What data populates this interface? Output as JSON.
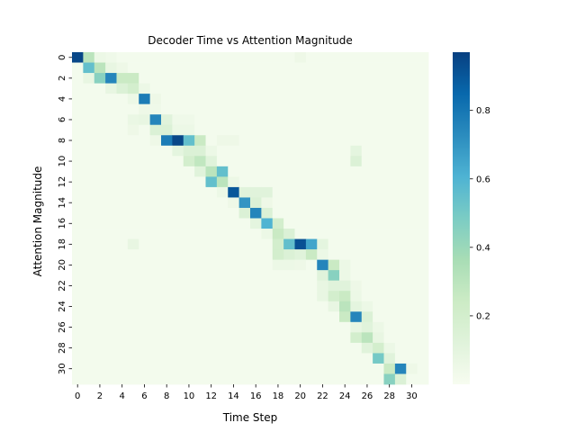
{
  "chart_data": {
    "type": "heatmap",
    "title": "Decoder Time vs Attention Magnitude",
    "xlabel": "Time Step",
    "ylabel": "Attention Magnitude",
    "n_rows": 32,
    "n_cols": 32,
    "x_tick_labels": [
      "0",
      "2",
      "4",
      "6",
      "8",
      "10",
      "12",
      "14",
      "16",
      "18",
      "20",
      "22",
      "24",
      "26",
      "28",
      "30"
    ],
    "y_tick_labels": [
      "0",
      "2",
      "4",
      "6",
      "8",
      "10",
      "12",
      "14",
      "16",
      "18",
      "20",
      "22",
      "24",
      "26",
      "28",
      "30"
    ],
    "colorbar": {
      "ticks": [
        0.2,
        0.4,
        0.6,
        0.8
      ],
      "vmin": 0.0,
      "vmax": 0.97,
      "colormap": "GnBu",
      "stops": [
        "#f7fcf0",
        "#e0f3db",
        "#ccebc5",
        "#a8ddb5",
        "#7bccc4",
        "#4eb3d3",
        "#2b8cbe",
        "#0868ac",
        "#084081"
      ]
    },
    "background_value": 0.02,
    "cells": [
      [
        0,
        0,
        0.95
      ],
      [
        0,
        1,
        0.3
      ],
      [
        0,
        2,
        0.06
      ],
      [
        0,
        3,
        0.04
      ],
      [
        0,
        20,
        0.05
      ],
      [
        1,
        1,
        0.55
      ],
      [
        1,
        2,
        0.3
      ],
      [
        1,
        3,
        0.08
      ],
      [
        1,
        4,
        0.05
      ],
      [
        2,
        1,
        0.08
      ],
      [
        2,
        2,
        0.45
      ],
      [
        2,
        3,
        0.75
      ],
      [
        2,
        4,
        0.25
      ],
      [
        2,
        5,
        0.25
      ],
      [
        3,
        3,
        0.08
      ],
      [
        3,
        4,
        0.15
      ],
      [
        3,
        5,
        0.2
      ],
      [
        3,
        6,
        0.06
      ],
      [
        4,
        5,
        0.06
      ],
      [
        4,
        6,
        0.78
      ],
      [
        4,
        7,
        0.05
      ],
      [
        5,
        6,
        0.05
      ],
      [
        5,
        7,
        0.04
      ],
      [
        6,
        5,
        0.07
      ],
      [
        6,
        6,
        0.08
      ],
      [
        6,
        7,
        0.75
      ],
      [
        6,
        8,
        0.12
      ],
      [
        6,
        9,
        0.04
      ],
      [
        6,
        10,
        0.04
      ],
      [
        7,
        5,
        0.05
      ],
      [
        7,
        7,
        0.15
      ],
      [
        7,
        8,
        0.15
      ],
      [
        7,
        9,
        0.06
      ],
      [
        7,
        10,
        0.06
      ],
      [
        8,
        7,
        0.05
      ],
      [
        8,
        8,
        0.78
      ],
      [
        8,
        9,
        0.95
      ],
      [
        8,
        10,
        0.55
      ],
      [
        8,
        11,
        0.25
      ],
      [
        8,
        13,
        0.05
      ],
      [
        8,
        14,
        0.05
      ],
      [
        9,
        9,
        0.1
      ],
      [
        9,
        10,
        0.15
      ],
      [
        9,
        11,
        0.15
      ],
      [
        9,
        12,
        0.06
      ],
      [
        9,
        25,
        0.1
      ],
      [
        10,
        10,
        0.2
      ],
      [
        10,
        11,
        0.28
      ],
      [
        10,
        12,
        0.12
      ],
      [
        10,
        25,
        0.15
      ],
      [
        11,
        11,
        0.12
      ],
      [
        11,
        12,
        0.3
      ],
      [
        11,
        13,
        0.55
      ],
      [
        12,
        12,
        0.55
      ],
      [
        12,
        13,
        0.3
      ],
      [
        12,
        14,
        0.06
      ],
      [
        13,
        13,
        0.06
      ],
      [
        13,
        14,
        0.9
      ],
      [
        13,
        15,
        0.12
      ],
      [
        13,
        16,
        0.12
      ],
      [
        13,
        17,
        0.12
      ],
      [
        14,
        14,
        0.05
      ],
      [
        14,
        15,
        0.7
      ],
      [
        14,
        16,
        0.15
      ],
      [
        14,
        17,
        0.05
      ],
      [
        15,
        15,
        0.15
      ],
      [
        15,
        16,
        0.75
      ],
      [
        15,
        17,
        0.15
      ],
      [
        16,
        16,
        0.1
      ],
      [
        16,
        17,
        0.6
      ],
      [
        16,
        18,
        0.2
      ],
      [
        17,
        17,
        0.06
      ],
      [
        17,
        18,
        0.25
      ],
      [
        17,
        19,
        0.15
      ],
      [
        18,
        5,
        0.08
      ],
      [
        18,
        18,
        0.2
      ],
      [
        18,
        19,
        0.55
      ],
      [
        18,
        20,
        0.92
      ],
      [
        18,
        21,
        0.65
      ],
      [
        18,
        22,
        0.1
      ],
      [
        19,
        18,
        0.2
      ],
      [
        19,
        19,
        0.15
      ],
      [
        19,
        20,
        0.12
      ],
      [
        19,
        21,
        0.25
      ],
      [
        19,
        22,
        0.06
      ],
      [
        20,
        18,
        0.06
      ],
      [
        20,
        19,
        0.06
      ],
      [
        20,
        20,
        0.05
      ],
      [
        20,
        22,
        0.75
      ],
      [
        20,
        23,
        0.25
      ],
      [
        20,
        24,
        0.06
      ],
      [
        21,
        22,
        0.12
      ],
      [
        21,
        23,
        0.45
      ],
      [
        21,
        24,
        0.06
      ],
      [
        22,
        22,
        0.08
      ],
      [
        22,
        23,
        0.12
      ],
      [
        22,
        24,
        0.12
      ],
      [
        22,
        25,
        0.05
      ],
      [
        23,
        22,
        0.08
      ],
      [
        23,
        23,
        0.2
      ],
      [
        23,
        24,
        0.25
      ],
      [
        23,
        25,
        0.06
      ],
      [
        24,
        23,
        0.08
      ],
      [
        24,
        24,
        0.3
      ],
      [
        24,
        25,
        0.1
      ],
      [
        24,
        26,
        0.06
      ],
      [
        25,
        24,
        0.25
      ],
      [
        25,
        25,
        0.75
      ],
      [
        25,
        26,
        0.15
      ],
      [
        26,
        25,
        0.08
      ],
      [
        26,
        26,
        0.12
      ],
      [
        26,
        27,
        0.06
      ],
      [
        27,
        25,
        0.2
      ],
      [
        27,
        26,
        0.3
      ],
      [
        27,
        27,
        0.08
      ],
      [
        28,
        26,
        0.12
      ],
      [
        28,
        27,
        0.2
      ],
      [
        28,
        28,
        0.06
      ],
      [
        29,
        27,
        0.5
      ],
      [
        29,
        28,
        0.12
      ],
      [
        30,
        28,
        0.25
      ],
      [
        30,
        29,
        0.75
      ],
      [
        30,
        30,
        0.05
      ],
      [
        31,
        28,
        0.45
      ],
      [
        31,
        29,
        0.15
      ]
    ]
  }
}
